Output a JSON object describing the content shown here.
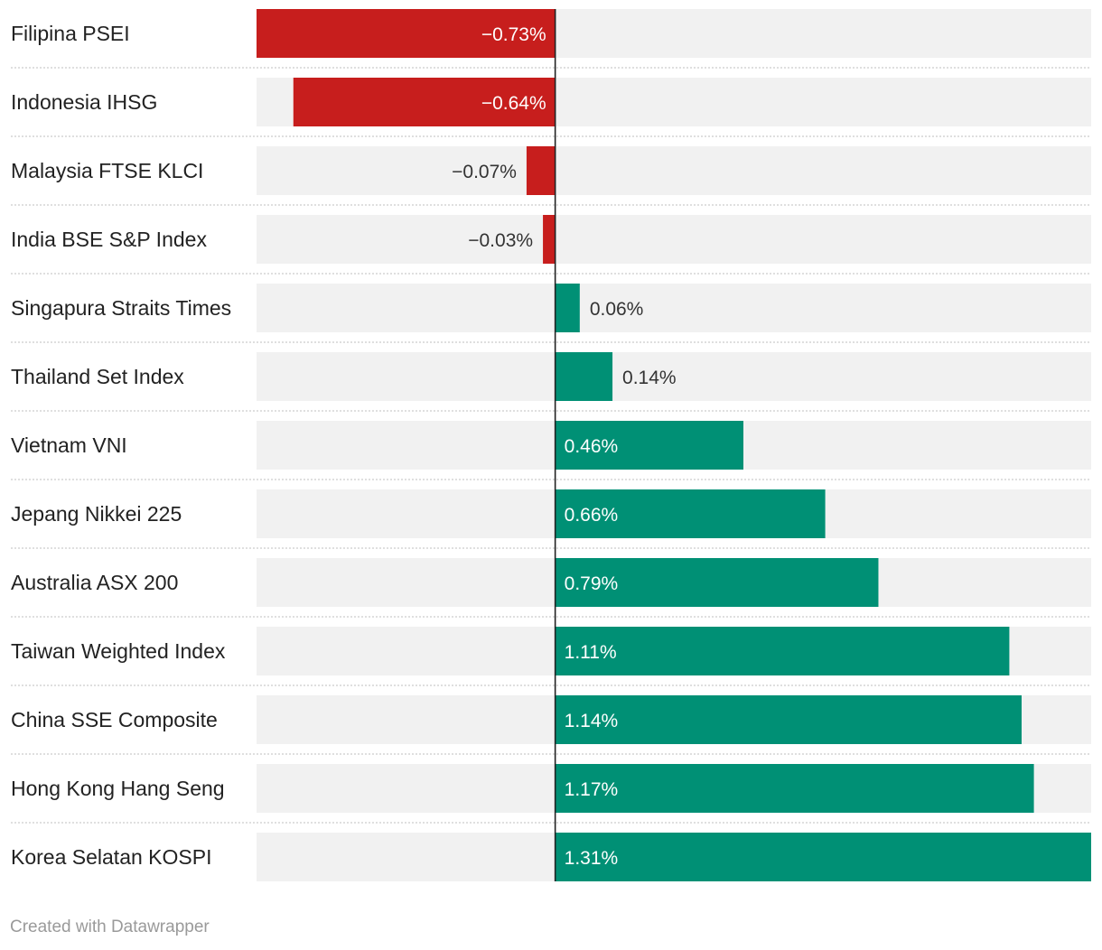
{
  "chart_data": {
    "type": "bar",
    "orientation": "horizontal",
    "categories": [
      "Filipina PSEI",
      "Indonesia IHSG",
      "Malaysia FTSE KLCI",
      "India BSE S&P Index",
      "Singapura Straits Times",
      "Thailand Set Index",
      "Vietnam VNI",
      "Jepang Nikkei 225",
      "Australia ASX 200",
      "Taiwan Weighted Index",
      "China SSE Composite",
      "Hong Kong Hang Seng",
      "Korea Selatan KOSPI"
    ],
    "values": [
      -0.73,
      -0.64,
      -0.07,
      -0.03,
      0.06,
      0.14,
      0.46,
      0.66,
      0.79,
      1.11,
      1.14,
      1.17,
      1.31
    ],
    "value_labels": [
      "−0.73%",
      "−0.64%",
      "−0.07%",
      "−0.03%",
      "0.06%",
      "0.14%",
      "0.46%",
      "0.66%",
      "0.79%",
      "1.11%",
      "1.14%",
      "1.17%",
      "1.31%"
    ],
    "xlim": [
      -0.73,
      1.31
    ],
    "colors": {
      "negative": "#c71e1d",
      "positive": "#009075",
      "track": "#f1f1f1",
      "zero_line": "#222222",
      "separator": "#cccccc"
    },
    "grid": false
  },
  "footer": {
    "credit": "Created with Datawrapper"
  }
}
